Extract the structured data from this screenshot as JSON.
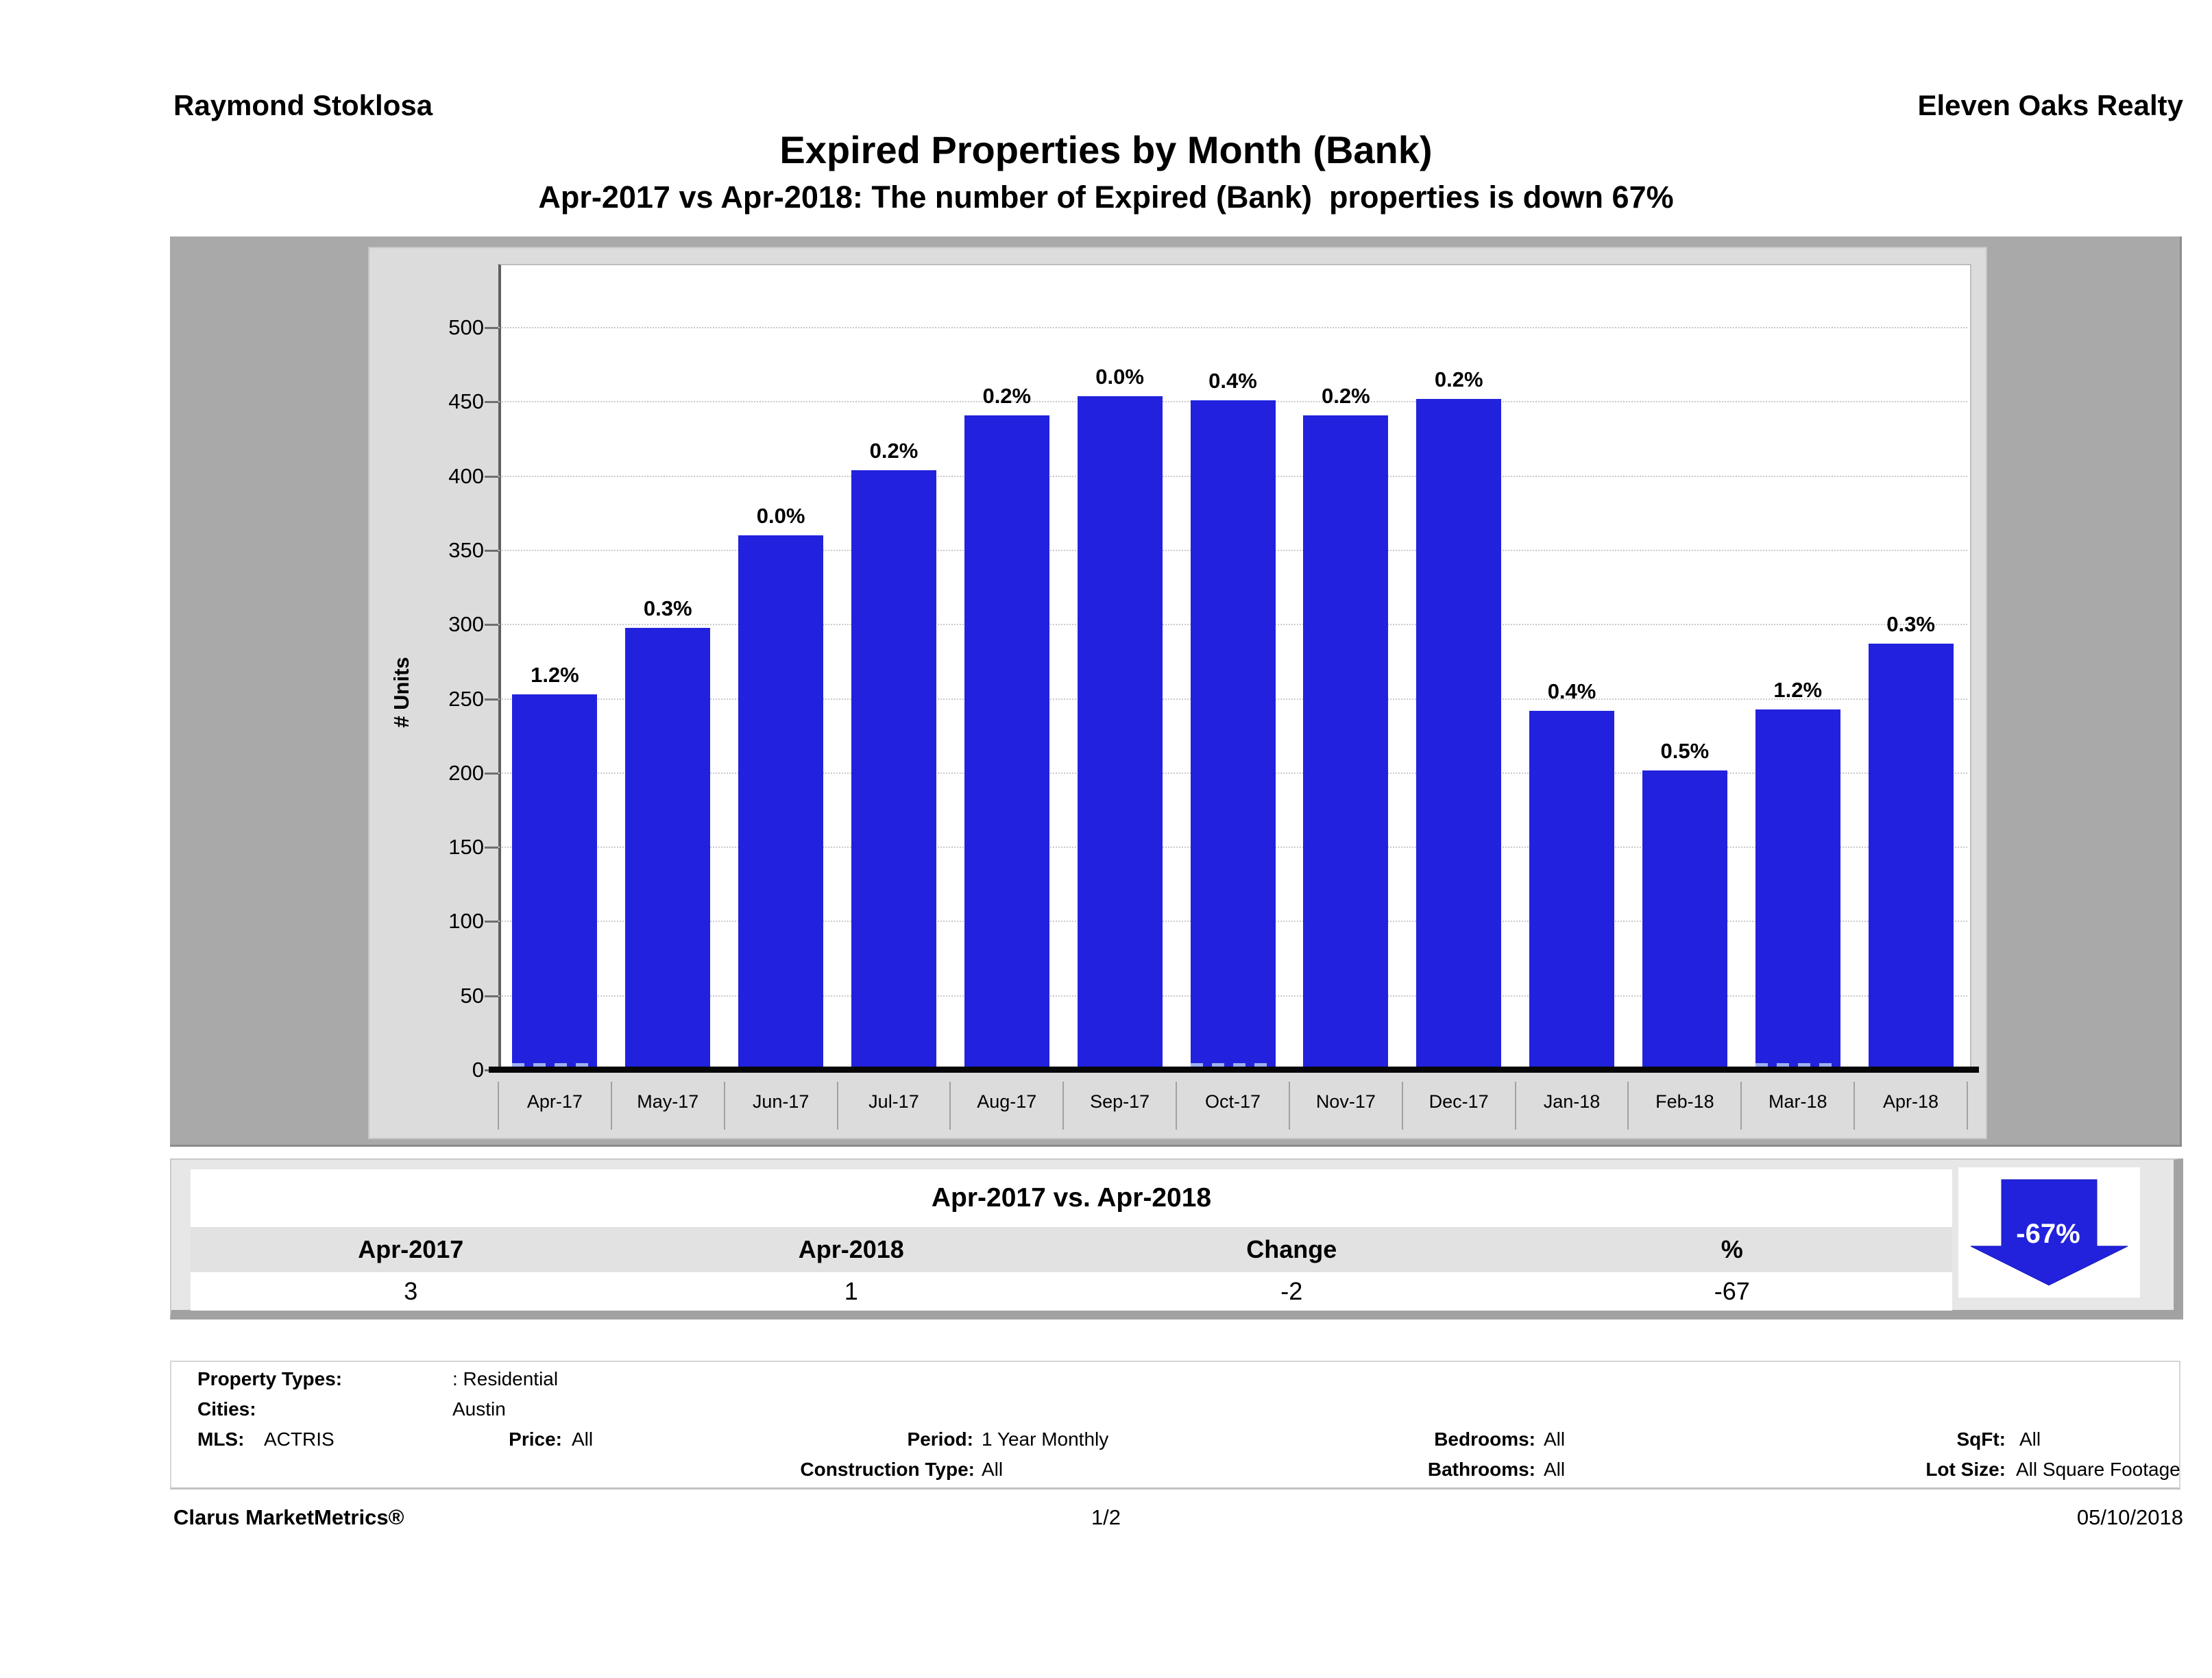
{
  "header": {
    "agent": "Raymond Stoklosa",
    "company": "Eleven Oaks Realty"
  },
  "title": "Expired Properties by Month (Bank)",
  "subtitle": "Apr-2017 vs Apr-2018: The number of Expired (Bank)  properties is down 67%",
  "chart_data": {
    "type": "bar",
    "title": "Expired Properties by Month (Bank)",
    "categories": [
      "Apr-17",
      "May-17",
      "Jun-17",
      "Jul-17",
      "Aug-17",
      "Sep-17",
      "Oct-17",
      "Nov-17",
      "Dec-17",
      "Jan-18",
      "Feb-18",
      "Mar-18",
      "Apr-18"
    ],
    "series": [
      {
        "name": "Total Expired Properties",
        "values": [
          253,
          298,
          360,
          404,
          441,
          454,
          451,
          441,
          452,
          242,
          202,
          243,
          287
        ]
      },
      {
        "name": "Expired (Bank)",
        "values": [
          3,
          1,
          0,
          1,
          1,
          0,
          2,
          1,
          1,
          1,
          1,
          3,
          1
        ]
      }
    ],
    "bar_labels": [
      "1.2%",
      "0.3%",
      "0.0%",
      "0.2%",
      "0.2%",
      "0.0%",
      "0.4%",
      "0.2%",
      "0.2%",
      "0.4%",
      "0.5%",
      "1.2%",
      "0.3%"
    ],
    "xlabel": "",
    "ylabel": "# Units",
    "ylim": [
      0,
      543
    ],
    "yticks": [
      0,
      50,
      100,
      150,
      200,
      250,
      300,
      350,
      400,
      450,
      500
    ],
    "grid": true,
    "legend_position": "none",
    "bar_color": "#2222de"
  },
  "summary_table": {
    "title": "Apr-2017 vs. Apr-2018",
    "columns": [
      "Apr-2017",
      "Apr-2018",
      "Change",
      "%"
    ],
    "values": [
      "3",
      "1",
      "-2",
      "-67"
    ],
    "arrow_label": "-67%",
    "arrow_color": "#2222dd"
  },
  "filters": {
    "property_types_label": "Property Types:",
    "property_types": ": Residential",
    "cities_label": "Cities:",
    "cities": "Austin",
    "mls_label": "MLS:",
    "mls": "ACTRIS",
    "price_label": "Price:",
    "price": "All",
    "period_label": "Period:",
    "period": "1 Year Monthly",
    "bedrooms_label": "Bedrooms:",
    "bedrooms": "All",
    "sqft_label": "SqFt:",
    "sqft": "All",
    "construction_label": "Construction Type:",
    "construction": "All",
    "bathrooms_label": "Bathrooms:",
    "bathrooms": "All",
    "lot_label": "Lot Size:",
    "lot": "All Square Footage"
  },
  "footer": {
    "brand": "Clarus MarketMetrics®",
    "page": "1/2",
    "date": "05/10/2018"
  }
}
